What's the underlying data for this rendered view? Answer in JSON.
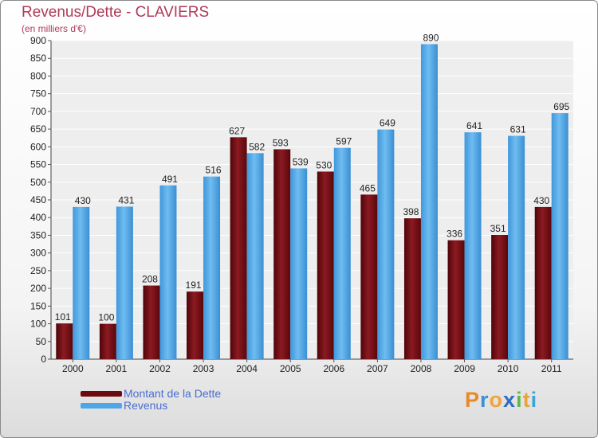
{
  "header": {
    "title": "Revenus/Dette - CLAVIERS",
    "subtitle": "(en milliers d'€)"
  },
  "chart_data": {
    "type": "bar",
    "categories": [
      "2000",
      "2001",
      "2002",
      "2003",
      "2004",
      "2005",
      "2006",
      "2007",
      "2008",
      "2009",
      "2010",
      "2011"
    ],
    "series": [
      {
        "name": "Montant de la Dette",
        "color": "#6b0a0f",
        "values": [
          101,
          100,
          208,
          191,
          627,
          593,
          530,
          465,
          398,
          336,
          351,
          430
        ]
      },
      {
        "name": "Revenus",
        "color": "#4ea6e6",
        "values": [
          430,
          431,
          491,
          516,
          582,
          539,
          597,
          649,
          890,
          641,
          631,
          695
        ]
      }
    ],
    "ylim": [
      0,
      900
    ],
    "yticks": [
      0,
      50,
      100,
      150,
      200,
      250,
      300,
      350,
      400,
      450,
      500,
      550,
      600,
      650,
      700,
      750,
      800,
      850,
      900
    ],
    "grid": true,
    "legend": "bottom-left"
  },
  "brand": {
    "letters": [
      "P",
      "r",
      "o",
      "x",
      "i",
      "t",
      "i"
    ],
    "colors": [
      "#e8892a",
      "#3b8fd6",
      "#f2a33a",
      "#2d6fc0",
      "#5db84a",
      "#e8a23a",
      "#3aa6d6"
    ]
  }
}
